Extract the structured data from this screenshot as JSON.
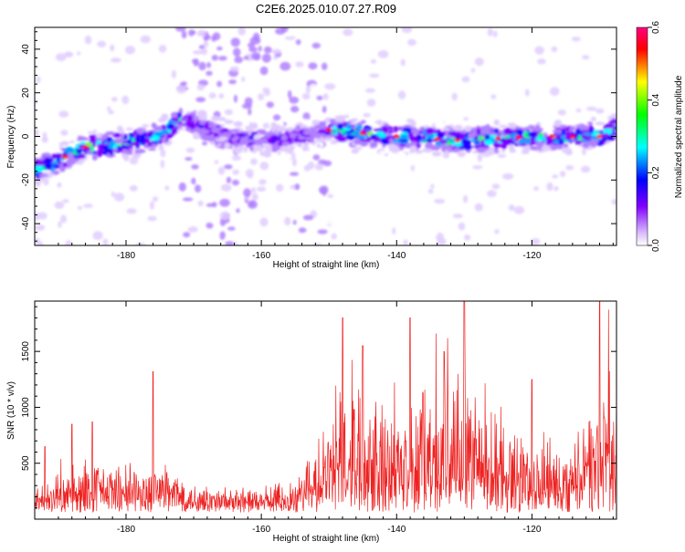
{
  "title": "C2E6.2025.010.07.27.R09",
  "spectrogram": {
    "ylabel": "Frequency (Hz)",
    "xlabel": "Height of straight line (km)",
    "xlim": [
      -193.5,
      -107.5
    ],
    "ylim": [
      -50,
      50
    ],
    "xticks": [
      "-180",
      "-160",
      "-140",
      "-120"
    ],
    "yticks": [
      "40",
      "20",
      "0",
      "-20",
      "-40"
    ],
    "colorbar": {
      "label": "Normalized spectral amplitude",
      "range": [
        0.0,
        0.6
      ],
      "ticks": [
        "0.0",
        "0.2",
        "0.4",
        "0.6"
      ],
      "colors": [
        "#ffffff",
        "#8000ff",
        "#0000ff",
        "#00ffff",
        "#00ff00",
        "#ffff00",
        "#ff0000",
        "#ff0080"
      ]
    }
  },
  "chart_data": [
    {
      "type": "heatmap",
      "title": "C2E6.2025.010.07.27.R09",
      "xlabel": "Height of straight line (km)",
      "ylabel": "Frequency (Hz)",
      "xlim": [
        -193.5,
        -107.5
      ],
      "ylim": [
        -50,
        50
      ],
      "band_center_hz": [
        [
          -193,
          -15
        ],
        [
          -186,
          -5
        ],
        [
          -180,
          -3
        ],
        [
          -175,
          0
        ],
        [
          -172,
          8
        ],
        [
          -165,
          0
        ],
        [
          -158,
          -2
        ],
        [
          -150,
          3
        ],
        [
          -140,
          0
        ],
        [
          -130,
          -2
        ],
        [
          -120,
          0
        ],
        [
          -110,
          0
        ],
        [
          -108,
          3
        ]
      ],
      "band_halfwidth_hz": 5,
      "peak_amplitude": 0.6
    },
    {
      "type": "line",
      "xlabel": "Height of straight line (km)",
      "ylabel": "SNR (10 * v/v)",
      "xlim": [
        -193.5,
        -107.5
      ],
      "ylim": [
        0,
        1950
      ],
      "yticks": [
        "500",
        "1000",
        "1500"
      ],
      "xticks": [
        "-180",
        "-160",
        "-140",
        "-120"
      ],
      "color": "#ee2222",
      "envelope": {
        "x": [
          -193,
          -185,
          -178,
          -175,
          -170,
          -165,
          -160,
          -155,
          -152,
          -148,
          -146,
          -143,
          -140,
          -136,
          -133,
          -130,
          -127,
          -125,
          -120,
          -115,
          -111,
          -109,
          -108
        ],
        "y": [
          200,
          400,
          350,
          450,
          250,
          200,
          180,
          300,
          500,
          1000,
          1100,
          1000,
          750,
          1050,
          1000,
          1350,
          850,
          750,
          600,
          450,
          850,
          1150,
          900
        ]
      },
      "peaks": [
        {
          "x": -192,
          "y": 650
        },
        {
          "x": -188,
          "y": 850
        },
        {
          "x": -185,
          "y": 870
        },
        {
          "x": -176,
          "y": 1320
        },
        {
          "x": -148,
          "y": 1800
        },
        {
          "x": -145,
          "y": 1550
        },
        {
          "x": -138,
          "y": 1800
        },
        {
          "x": -133,
          "y": 1500
        },
        {
          "x": -130,
          "y": 1950
        },
        {
          "x": -120,
          "y": 1250
        },
        {
          "x": -110,
          "y": 1950
        }
      ]
    }
  ]
}
